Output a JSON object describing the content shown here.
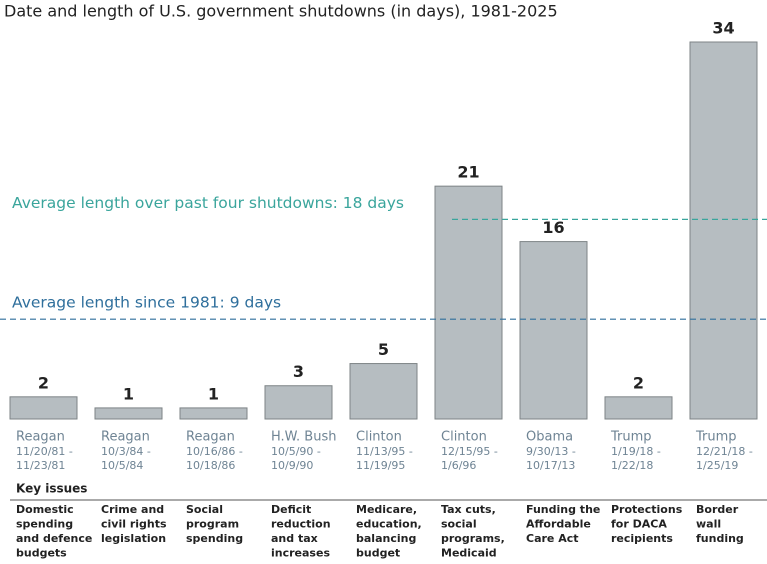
{
  "chart_data": {
    "type": "bar",
    "title": "Date and length of U.S. government shutdowns (in days), 1981-2025",
    "categories": [
      "Reagan",
      "Reagan",
      "Reagan",
      "H.W. Bush",
      "Clinton",
      "Clinton",
      "Obama",
      "Trump",
      "Trump"
    ],
    "dates": [
      [
        "11/20/81 -",
        "11/23/81"
      ],
      [
        "10/3/84 -",
        "10/5/84"
      ],
      [
        "10/16/86 -",
        "10/18/86"
      ],
      [
        "10/5/90 -",
        "10/9/90"
      ],
      [
        "11/13/95 -",
        "11/19/95"
      ],
      [
        "12/15/95 -",
        "1/6/96"
      ],
      [
        "9/30/13 -",
        "10/17/13"
      ],
      [
        "1/19/18 -",
        "1/22/18"
      ],
      [
        "12/21/18 -",
        "1/25/19"
      ]
    ],
    "values": [
      2,
      1,
      1,
      3,
      5,
      21,
      16,
      2,
      34
    ],
    "color": "#b6bdc1",
    "key_issues_label": "Key issues",
    "key_issues": [
      [
        "Domestic",
        "spending",
        "and defence",
        "budgets"
      ],
      [
        "Crime and",
        "civil rights",
        "legislation"
      ],
      [
        "Social",
        "program",
        "spending"
      ],
      [
        "Deficit",
        "reduction",
        "and tax",
        "increases"
      ],
      [
        "Medicare,",
        "education,",
        "balancing",
        "budget"
      ],
      [
        "Tax cuts,",
        "social",
        "programs,",
        "Medicaid"
      ],
      [
        "Funding the",
        "Affordable",
        "Care Act"
      ],
      [
        "Protections",
        "for DACA",
        "recipients"
      ],
      [
        "Border",
        "wall",
        "funding"
      ]
    ],
    "reference_lines": [
      {
        "label": "Average length over past four shutdowns: 18 days",
        "value": 18,
        "color": "#3aa59c"
      },
      {
        "label": "Average length since 1981: 9 days",
        "value": 9,
        "color": "#2f6f9c"
      }
    ]
  }
}
